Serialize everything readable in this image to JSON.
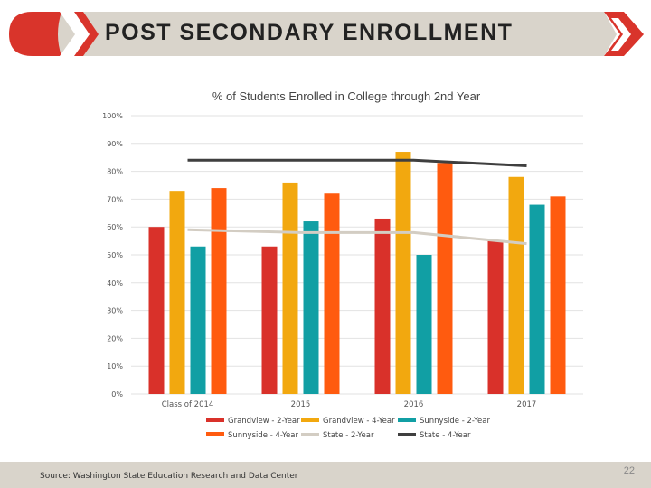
{
  "slide": {
    "title": "POST SECONDARY ENROLLMENT",
    "source": "Source: Washington State Education Research and Data Center",
    "page_number": "22"
  },
  "colors": {
    "banner_bg": "#d9d4cb",
    "accent_red": "#d9342b",
    "footer_bg": "#d9d4cb"
  },
  "chart_data": {
    "type": "bar",
    "title": "% of Students Enrolled in College through 2nd Year",
    "categories": [
      "Class of 2014",
      "2015",
      "2016",
      "2017"
    ],
    "ylim": [
      0,
      100
    ],
    "yticks": [
      0,
      10,
      20,
      30,
      40,
      50,
      60,
      70,
      80,
      90,
      100
    ],
    "ytick_labels": [
      "0%",
      "10%",
      "20%",
      "30%",
      "40%",
      "50%",
      "60%",
      "70%",
      "80%",
      "90%",
      "100%"
    ],
    "grid": true,
    "series": [
      {
        "name": "Grandview - 2-Year",
        "kind": "bar",
        "color": "#d9312a",
        "values": [
          60,
          53,
          63,
          55
        ]
      },
      {
        "name": "Grandview - 4-Year",
        "kind": "bar",
        "color": "#f2a80f",
        "values": [
          73,
          76,
          87,
          78
        ]
      },
      {
        "name": "Sunnyside - 2-Year",
        "kind": "bar",
        "color": "#119fa4",
        "values": [
          53,
          62,
          50,
          68
        ]
      },
      {
        "name": "Sunnyside - 4-Year",
        "kind": "bar",
        "color": "#ff5b0f",
        "values": [
          74,
          72,
          83,
          71
        ]
      },
      {
        "name": "State - 2-Year",
        "kind": "line",
        "color": "#d3cdc3",
        "values": [
          59,
          58,
          58,
          54
        ]
      },
      {
        "name": "State - 4-Year",
        "kind": "line",
        "color": "#3f3f3f",
        "values": [
          84,
          84,
          84,
          82
        ]
      }
    ],
    "legend_position": "bottom"
  }
}
